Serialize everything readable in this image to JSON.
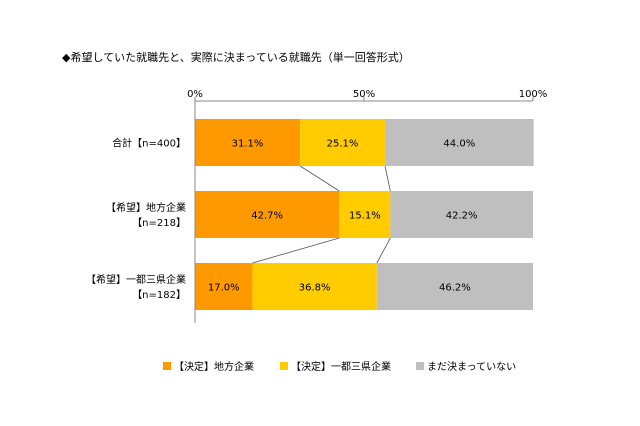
{
  "title": "◆希望していた就職先と、実際に決まっている就職先（単一回答形式）",
  "chart_data": {
    "type": "bar",
    "stacked": true,
    "orientation": "horizontal",
    "percent_stacked": true,
    "xlim": [
      0,
      100
    ],
    "x_ticks": [
      "0%",
      "50%",
      "100%"
    ],
    "categories": [
      [
        "合計【n=400】"
      ],
      [
        "【希望】地方企業",
        "【n=218】"
      ],
      [
        "【希望】一都三県企業",
        "【n=182】"
      ]
    ],
    "series": [
      {
        "name": "【決定】地方企業",
        "color": "#FF9900",
        "values": [
          31.1,
          42.7,
          17.0
        ],
        "labels": [
          "31.1%",
          "42.7%",
          "17.0%"
        ]
      },
      {
        "name": "【決定】一都三県企業",
        "color": "#FFCC00",
        "values": [
          25.1,
          15.1,
          36.8
        ],
        "labels": [
          "25.1%",
          "15.1%",
          "36.8%"
        ]
      },
      {
        "name": "まだ決まっていない",
        "color": "#BFBFBF",
        "values": [
          44.0,
          42.2,
          46.2
        ],
        "labels": [
          "44.0%",
          "42.2%",
          "46.2%"
        ]
      }
    ],
    "grid": false,
    "legend_position": "bottom",
    "connector_lines": true
  }
}
